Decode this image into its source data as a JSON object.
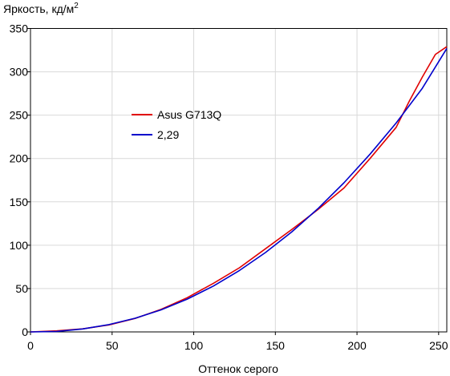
{
  "chart_data": {
    "type": "line",
    "title": "",
    "ylabel": "Яркость, кд/м",
    "ylabel_superscript": "2",
    "xlabel": "Оттенок серого",
    "xlim": [
      0,
      255
    ],
    "ylim": [
      0,
      350
    ],
    "xticks": [
      "0",
      "50",
      "100",
      "150",
      "200",
      "250"
    ],
    "yticks": [
      "0",
      "50",
      "100",
      "150",
      "200",
      "250",
      "300",
      "350"
    ],
    "legend_position": "upper-left-inside",
    "series": [
      {
        "name": "Asus G713Q",
        "color": "#e00000",
        "x": [
          0,
          16,
          32,
          48,
          64,
          80,
          96,
          112,
          128,
          144,
          160,
          176,
          192,
          208,
          224,
          232,
          240,
          248,
          255
        ],
        "y": [
          0,
          1.2,
          3.5,
          8.0,
          15.5,
          26.0,
          39.5,
          56.0,
          74.0,
          96.0,
          118.0,
          141.0,
          166.0,
          200.0,
          236.0,
          266.0,
          294.0,
          320.0,
          329.0
        ]
      },
      {
        "name": "2,29",
        "color": "#0000cc",
        "x": [
          0,
          16,
          32,
          48,
          64,
          80,
          96,
          112,
          128,
          144,
          160,
          176,
          192,
          208,
          224,
          240,
          255
        ],
        "y": [
          0,
          0.6,
          3.4,
          8.4,
          15.7,
          25.4,
          37.8,
          52.9,
          70.8,
          91.6,
          115.2,
          142.0,
          172.0,
          205.0,
          241.0,
          281.0,
          327.0
        ]
      }
    ]
  }
}
